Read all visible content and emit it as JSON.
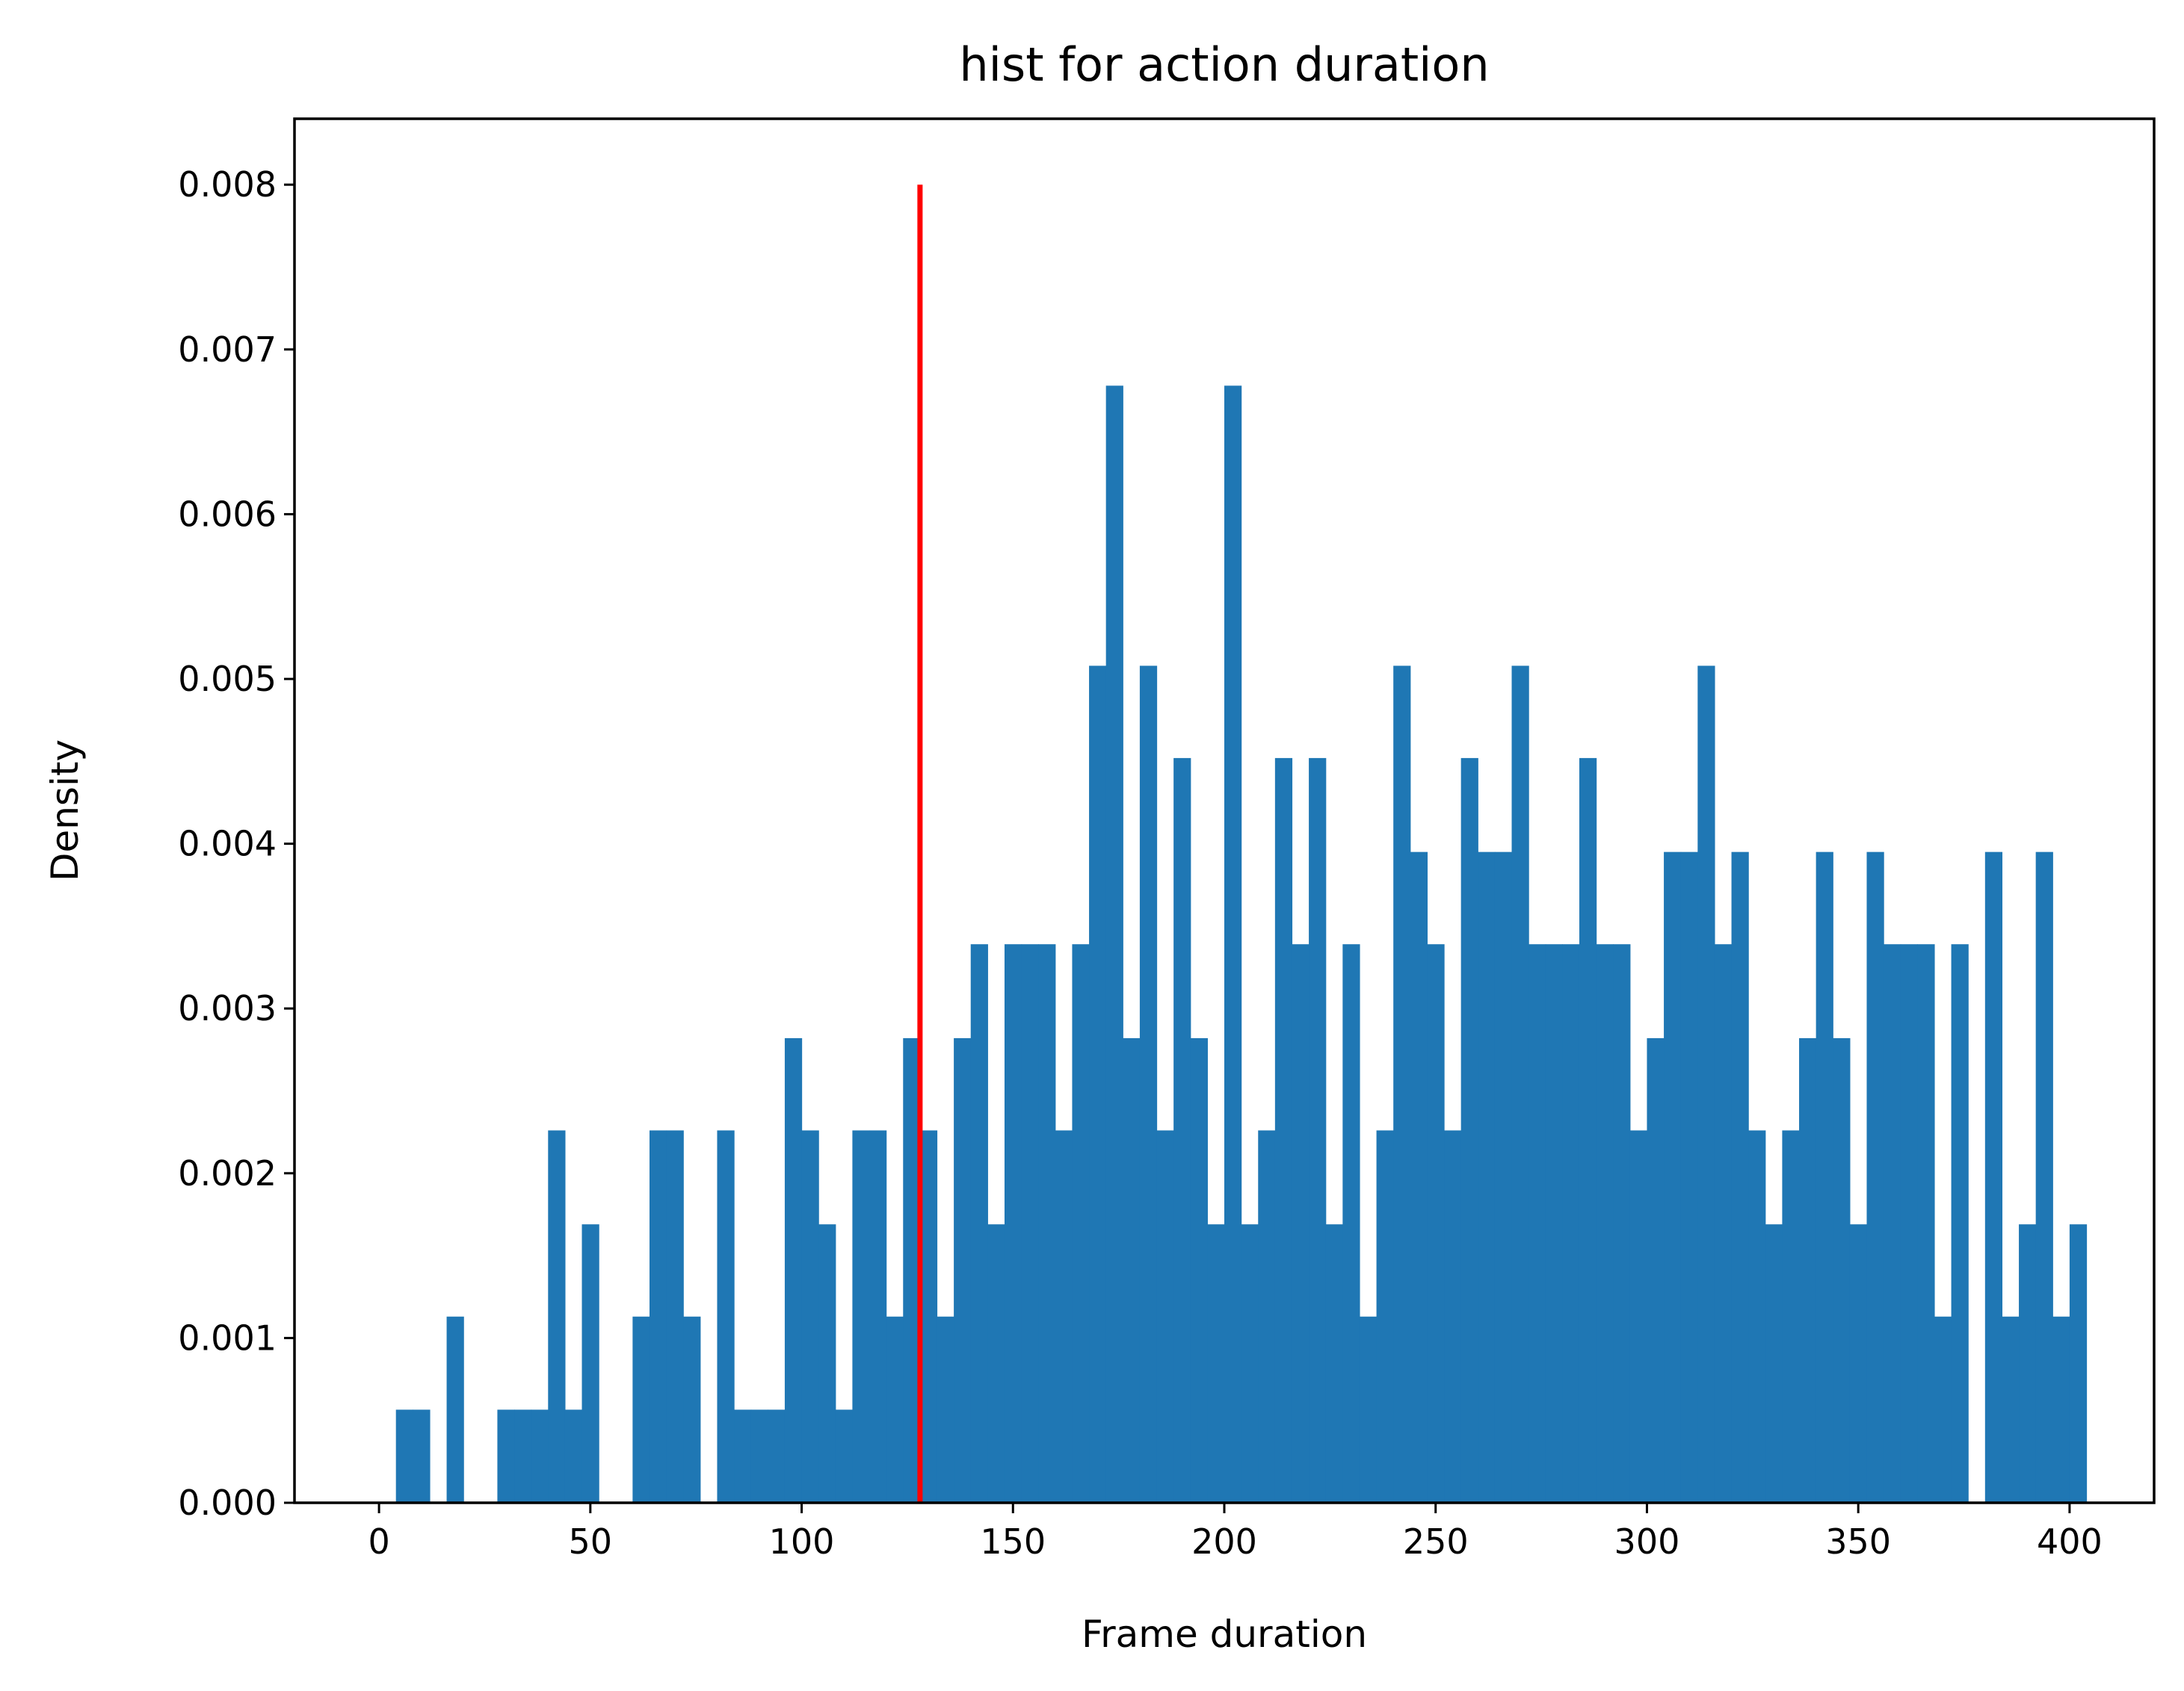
{
  "chart_data": {
    "type": "bar",
    "title": "hist for action duration",
    "xlabel": "Frame duration",
    "ylabel": "Density",
    "xlim": [
      -20,
      420
    ],
    "ylim": [
      0,
      0.0084
    ],
    "x_ticks": [
      0,
      50,
      100,
      150,
      200,
      250,
      300,
      350,
      400
    ],
    "x_tick_labels": [
      "0",
      "50",
      "100",
      "150",
      "200",
      "250",
      "300",
      "350",
      "400"
    ],
    "y_ticks": [
      0,
      0.001,
      0.002,
      0.003,
      0.004,
      0.005,
      0.006,
      0.007,
      0.008
    ],
    "y_tick_labels": [
      "0.000",
      "0.001",
      "0.002",
      "0.003",
      "0.004",
      "0.005",
      "0.006",
      "0.007",
      "0.008"
    ],
    "bin_start": 0,
    "bin_width": 4,
    "values": [
      0,
      0.000565,
      0.000565,
      0,
      0.00113,
      0,
      0,
      0.000565,
      0.000565,
      0.000565,
      0.00226,
      0.000565,
      0.00169,
      0,
      0,
      0.00113,
      0.00226,
      0.00226,
      0.00113,
      0,
      0.00226,
      0.000565,
      0.000565,
      0.000565,
      0.00282,
      0.00226,
      0.00169,
      0.000565,
      0.00226,
      0.00226,
      0.00113,
      0.00282,
      0.00226,
      0.00113,
      0.00282,
      0.00339,
      0.00169,
      0.00339,
      0.00339,
      0.00339,
      0.00226,
      0.00339,
      0.00508,
      0.00678,
      0.00282,
      0.00508,
      0.00226,
      0.00452,
      0.00282,
      0.00169,
      0.00678,
      0.00169,
      0.00226,
      0.00452,
      0.00339,
      0.00452,
      0.00169,
      0.00339,
      0.00113,
      0.00226,
      0.00508,
      0.00395,
      0.00339,
      0.00226,
      0.00452,
      0.00395,
      0.00395,
      0.00508,
      0.00339,
      0.00339,
      0.00339,
      0.00452,
      0.00339,
      0.00339,
      0.00226,
      0.00282,
      0.00395,
      0.00395,
      0.00508,
      0.00339,
      0.00395,
      0.00226,
      0.00169,
      0.00226,
      0.00282,
      0.00395,
      0.00282,
      0.00169,
      0.00395,
      0.00339,
      0.00339,
      0.00339,
      0.00113,
      0.00339,
      0,
      0.00395,
      0.00113,
      0.00169,
      0.00395,
      0.00113,
      0.00169
    ],
    "vline": {
      "x": 128,
      "ymin": 0,
      "ymax": 0.008,
      "color": "#ff0000"
    },
    "bar_color": "#1f77b4",
    "grid": false,
    "legend": "none"
  }
}
